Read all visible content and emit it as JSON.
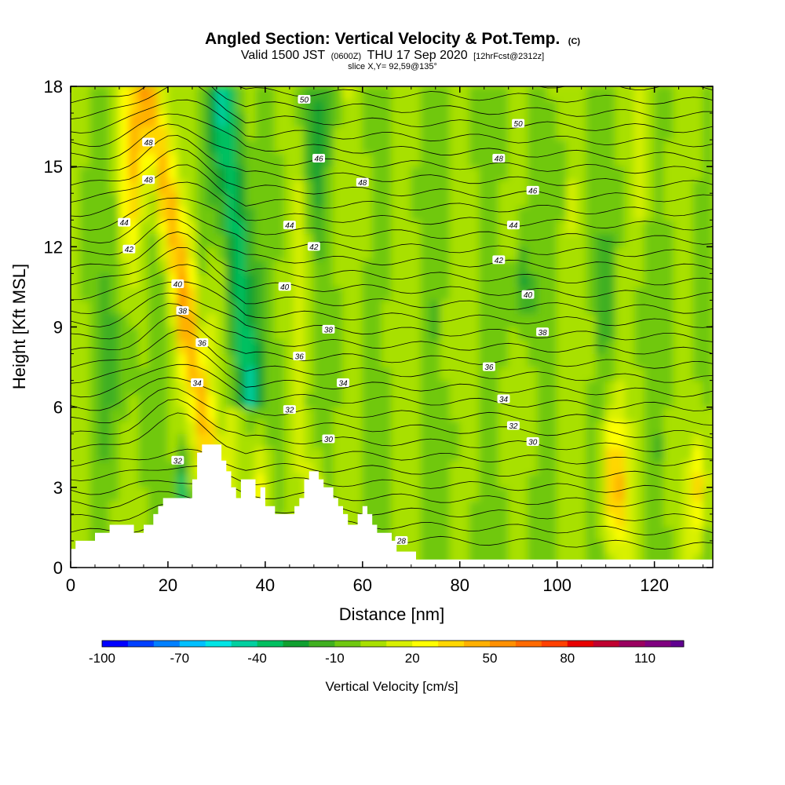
{
  "header": {
    "title_main": "Angled Section: Vertical Velocity & Pot.Temp.",
    "title_mark": "(C)",
    "valid_prefix": "Valid 1500 JST",
    "valid_utc": "(0600Z)",
    "valid_date": "THU 17 Sep 2020",
    "valid_fcst": "[12hrFcst@2312z]",
    "slice": "slice X,Y= 92,59@135°"
  },
  "chart_data": {
    "type": "heatmap",
    "xlabel": "Distance [nm]",
    "ylabel": "Height [Kft MSL]",
    "xlim": [
      0,
      132
    ],
    "ylim": [
      0,
      18
    ],
    "x_ticks": [
      "0",
      "20",
      "40",
      "60",
      "80",
      "100",
      "120"
    ],
    "y_ticks": [
      "0",
      "3",
      "6",
      "9",
      "12",
      "15",
      "18"
    ],
    "x_tick_values": [
      0,
      20,
      40,
      60,
      80,
      100,
      120
    ],
    "y_tick_values": [
      0,
      3,
      6,
      9,
      12,
      15,
      18
    ],
    "colorbar": {
      "label": "Vertical Velocity [cm/s]",
      "range": [
        -100,
        125
      ],
      "step": 10,
      "tick_labels": [
        "-100",
        "-70",
        "-40",
        "-10",
        "20",
        "50",
        "80",
        "110"
      ],
      "tick_values": [
        -100,
        -70,
        -40,
        -10,
        20,
        50,
        80,
        110
      ],
      "colors": [
        "#0000ff",
        "#0040ff",
        "#0080ff",
        "#00c0ff",
        "#00e5e5",
        "#00d0a0",
        "#00c060",
        "#10a030",
        "#40b020",
        "#70c810",
        "#a8e000",
        "#d8f000",
        "#ffff00",
        "#ffd700",
        "#ffb000",
        "#ff9000",
        "#ff6a00",
        "#ff4000",
        "#e80000",
        "#c00030",
        "#9a0060",
        "#800080",
        "#600090"
      ]
    },
    "contour_labels": [
      {
        "text": "50",
        "x": 48,
        "y": 17.5
      },
      {
        "text": "50",
        "x": 92,
        "y": 16.6
      },
      {
        "text": "48",
        "x": 16,
        "y": 15.9
      },
      {
        "text": "48",
        "x": 88,
        "y": 15.3
      },
      {
        "text": "48",
        "x": 16,
        "y": 14.5
      },
      {
        "text": "48",
        "x": 60,
        "y": 14.4
      },
      {
        "text": "46",
        "x": 51,
        "y": 15.3
      },
      {
        "text": "46",
        "x": 95,
        "y": 14.1
      },
      {
        "text": "44",
        "x": 11,
        "y": 12.9
      },
      {
        "text": "44",
        "x": 45,
        "y": 12.8
      },
      {
        "text": "44",
        "x": 91,
        "y": 12.8
      },
      {
        "text": "42",
        "x": 12,
        "y": 11.9
      },
      {
        "text": "42",
        "x": 50,
        "y": 12.0
      },
      {
        "text": "42",
        "x": 88,
        "y": 11.5
      },
      {
        "text": "40",
        "x": 22,
        "y": 10.6
      },
      {
        "text": "40",
        "x": 44,
        "y": 10.5
      },
      {
        "text": "40",
        "x": 94,
        "y": 10.2
      },
      {
        "text": "38",
        "x": 23,
        "y": 9.6
      },
      {
        "text": "38",
        "x": 53,
        "y": 8.9
      },
      {
        "text": "38",
        "x": 97,
        "y": 8.8
      },
      {
        "text": "36",
        "x": 27,
        "y": 8.4
      },
      {
        "text": "36",
        "x": 47,
        "y": 7.9
      },
      {
        "text": "36",
        "x": 86,
        "y": 7.5
      },
      {
        "text": "34",
        "x": 26,
        "y": 6.9
      },
      {
        "text": "34",
        "x": 56,
        "y": 6.9
      },
      {
        "text": "34",
        "x": 89,
        "y": 6.3
      },
      {
        "text": "32",
        "x": 45,
        "y": 5.9
      },
      {
        "text": "32",
        "x": 91,
        "y": 5.3
      },
      {
        "text": "30",
        "x": 53,
        "y": 4.8
      },
      {
        "text": "30",
        "x": 95,
        "y": 4.7
      },
      {
        "text": "32",
        "x": 22,
        "y": 4.0
      },
      {
        "text": "28",
        "x": 68,
        "y": 1.0
      }
    ],
    "terrain": [
      [
        0,
        0.0
      ],
      [
        0,
        0.7
      ],
      [
        1,
        0.7
      ],
      [
        1,
        1.0
      ],
      [
        5,
        1.0
      ],
      [
        5,
        1.3
      ],
      [
        8,
        1.3
      ],
      [
        8,
        1.6
      ],
      [
        13,
        1.6
      ],
      [
        13,
        1.3
      ],
      [
        15,
        1.3
      ],
      [
        15,
        1.6
      ],
      [
        17,
        1.6
      ],
      [
        17,
        2.0
      ],
      [
        18,
        2.0
      ],
      [
        18,
        2.3
      ],
      [
        19,
        2.3
      ],
      [
        19,
        2.6
      ],
      [
        25,
        2.6
      ],
      [
        25,
        3.3
      ],
      [
        26,
        3.3
      ],
      [
        26,
        4.3
      ],
      [
        27,
        4.3
      ],
      [
        27,
        4.6
      ],
      [
        31,
        4.6
      ],
      [
        31,
        4.0
      ],
      [
        32,
        4.0
      ],
      [
        32,
        3.6
      ],
      [
        33,
        3.6
      ],
      [
        33,
        3.0
      ],
      [
        34,
        3.0
      ],
      [
        34,
        2.6
      ],
      [
        35,
        2.6
      ],
      [
        35,
        3.3
      ],
      [
        38,
        3.3
      ],
      [
        38,
        2.6
      ],
      [
        39,
        2.6
      ],
      [
        39,
        3.0
      ],
      [
        40,
        3.0
      ],
      [
        40,
        2.3
      ],
      [
        42,
        2.3
      ],
      [
        42,
        2.0
      ],
      [
        46,
        2.0
      ],
      [
        46,
        2.3
      ],
      [
        47,
        2.3
      ],
      [
        47,
        2.6
      ],
      [
        48,
        2.6
      ],
      [
        48,
        3.3
      ],
      [
        49,
        3.3
      ],
      [
        49,
        3.6
      ],
      [
        51,
        3.6
      ],
      [
        51,
        3.3
      ],
      [
        52,
        3.3
      ],
      [
        52,
        3.0
      ],
      [
        54,
        3.0
      ],
      [
        54,
        2.6
      ],
      [
        55,
        2.6
      ],
      [
        55,
        2.3
      ],
      [
        56,
        2.3
      ],
      [
        56,
        2.0
      ],
      [
        57,
        2.0
      ],
      [
        57,
        1.6
      ],
      [
        59,
        1.6
      ],
      [
        59,
        2.0
      ],
      [
        60,
        2.0
      ],
      [
        60,
        2.3
      ],
      [
        61,
        2.3
      ],
      [
        61,
        2.0
      ],
      [
        62,
        2.0
      ],
      [
        62,
        1.6
      ],
      [
        63,
        1.6
      ],
      [
        63,
        1.3
      ],
      [
        66,
        1.3
      ],
      [
        66,
        1.0
      ],
      [
        67,
        1.0
      ],
      [
        67,
        0.6
      ],
      [
        71,
        0.6
      ],
      [
        71,
        0.3
      ],
      [
        132,
        0.3
      ],
      [
        132,
        0.0
      ]
    ]
  }
}
